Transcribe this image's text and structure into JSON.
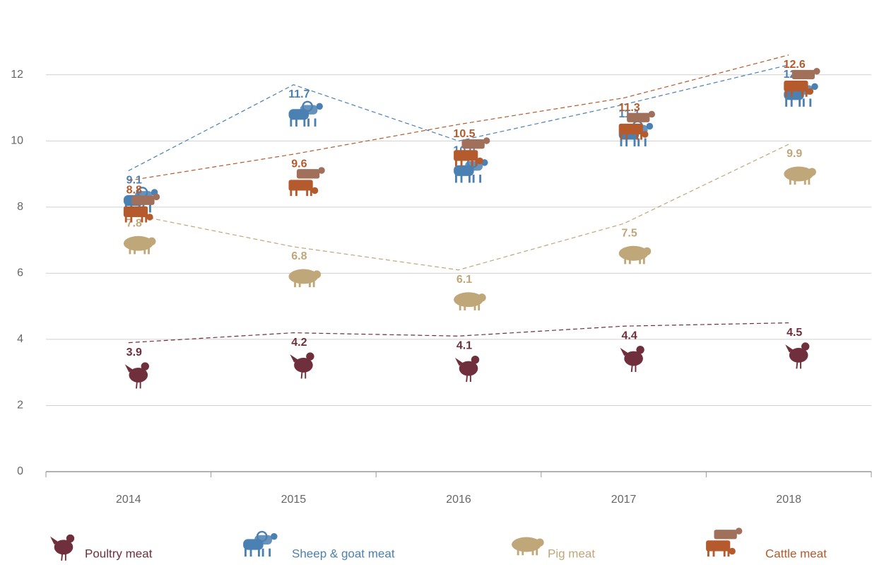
{
  "chart_data": {
    "type": "line",
    "categories": [
      "2014",
      "2015",
      "2016",
      "2017",
      "2018"
    ],
    "ylim": [
      0,
      13.3
    ],
    "yticks": [
      0,
      2,
      4,
      6,
      8,
      10,
      12
    ],
    "grid": true,
    "legend": "bottom",
    "series": [
      {
        "name": "Poultry meat",
        "color": "#6f2f3c",
        "values": [
          3.9,
          4.2,
          4.1,
          4.4,
          4.5
        ]
      },
      {
        "name": "Sheep & goat meat",
        "color": "#4b80b3",
        "values": [
          9.1,
          11.7,
          10.0,
          11.1,
          12.3
        ],
        "value_labels": [
          "9.1",
          "11.7",
          "10.0",
          "11.1",
          "12.3"
        ]
      },
      {
        "name": "Pig meat",
        "color": "#bfa77a",
        "values": [
          7.8,
          6.8,
          6.1,
          7.5,
          9.9
        ]
      },
      {
        "name": "Cattle meat",
        "color": "#b55a2c",
        "values": [
          8.8,
          9.6,
          10.5,
          11.3,
          12.6
        ]
      }
    ]
  }
}
